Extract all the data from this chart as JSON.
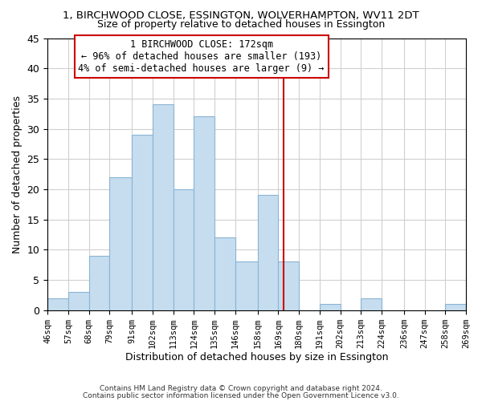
{
  "title1": "1, BIRCHWOOD CLOSE, ESSINGTON, WOLVERHAMPTON, WV11 2DT",
  "title2": "Size of property relative to detached houses in Essington",
  "xlabel": "Distribution of detached houses by size in Essington",
  "ylabel": "Number of detached properties",
  "bar_color": "#c6ddef",
  "bar_edge_color": "#8ab4d4",
  "bin_edges": [
    46,
    57,
    68,
    79,
    91,
    102,
    113,
    124,
    135,
    146,
    158,
    169,
    180,
    191,
    202,
    213,
    224,
    236,
    247,
    258,
    269
  ],
  "bin_labels": [
    "46sqm",
    "57sqm",
    "68sqm",
    "79sqm",
    "91sqm",
    "102sqm",
    "113sqm",
    "124sqm",
    "135sqm",
    "146sqm",
    "158sqm",
    "169sqm",
    "180sqm",
    "191sqm",
    "202sqm",
    "213sqm",
    "224sqm",
    "236sqm",
    "247sqm",
    "258sqm",
    "269sqm"
  ],
  "counts": [
    2,
    3,
    9,
    22,
    29,
    34,
    20,
    32,
    12,
    8,
    19,
    8,
    0,
    1,
    0,
    2,
    0,
    0,
    0,
    1
  ],
  "vline_x": 172,
  "vline_color": "#cc0000",
  "ylim": [
    0,
    45
  ],
  "yticks": [
    0,
    5,
    10,
    15,
    20,
    25,
    30,
    35,
    40,
    45
  ],
  "annotation_title": "1 BIRCHWOOD CLOSE: 172sqm",
  "annotation_line1": "← 96% of detached houses are smaller (193)",
  "annotation_line2": "4% of semi-detached houses are larger (9) →",
  "annotation_box_color": "#ffffff",
  "annotation_edge_color": "#cc0000",
  "footnote1": "Contains HM Land Registry data © Crown copyright and database right 2024.",
  "footnote2": "Contains public sector information licensed under the Open Government Licence v3.0.",
  "background_color": "#ffffff",
  "grid_color": "#d0d0d0"
}
